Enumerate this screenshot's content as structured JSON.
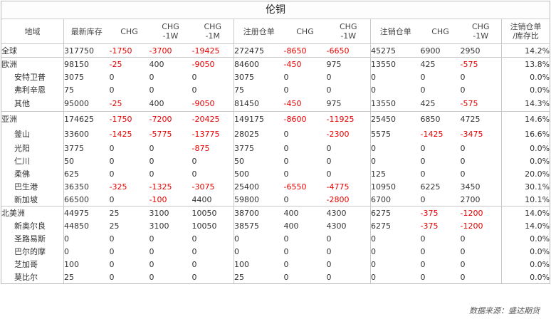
{
  "title": "伦铜",
  "headers": [
    [
      "地域",
      ""
    ],
    [
      "最新库存",
      ""
    ],
    [
      "CHG",
      ""
    ],
    [
      "CHG",
      "-1W"
    ],
    [
      "CHG",
      "-1M"
    ],
    [
      "注册仓单",
      ""
    ],
    [
      "CHG",
      ""
    ],
    [
      "CHG",
      "-1W"
    ],
    [
      "注销仓单",
      ""
    ],
    [
      "CHG",
      ""
    ],
    [
      "CHG",
      "-1W"
    ],
    [
      "注销仓单",
      "/库存比"
    ]
  ],
  "rows": [
    {
      "region": "全球",
      "sub": false,
      "values": [
        "317750",
        "-1750",
        "-3700",
        "-19425",
        "272475",
        "-8650",
        "-6650",
        "45275",
        "6900",
        "2950",
        "14.2%"
      ]
    },
    {
      "region": "欧洲",
      "sub": false,
      "values": [
        "98150",
        "-25",
        "400",
        "-9050",
        "84600",
        "-450",
        "975",
        "13550",
        "425",
        "-575",
        "13.8%"
      ]
    },
    {
      "region": "安特卫普",
      "sub": true,
      "values": [
        "3075",
        "0",
        "0",
        "0",
        "3075",
        "0",
        "0",
        "0",
        "0",
        "0",
        "0.0%"
      ]
    },
    {
      "region": "弗利辛恩",
      "sub": true,
      "values": [
        "75",
        "0",
        "0",
        "0",
        "75",
        "0",
        "0",
        "0",
        "0",
        "0",
        "0.0%"
      ]
    },
    {
      "region": "其他",
      "sub": true,
      "values": [
        "95000",
        "-25",
        "400",
        "-9050",
        "81450",
        "-450",
        "975",
        "13550",
        "425",
        "-575",
        "14.3%"
      ]
    },
    {
      "region": "亚洲",
      "sub": false,
      "values": [
        "174625",
        "-1750",
        "-7200",
        "-20425",
        "149175",
        "-8600",
        "-11925",
        "25450",
        "6850",
        "4725",
        "14.6%"
      ]
    },
    {
      "region": "釜山",
      "sub": true,
      "values": [
        "33600",
        "-1425",
        "-5775",
        "-13775",
        "28025",
        "0",
        "-2300",
        "5575",
        "-1425",
        "-3475",
        "16.6%"
      ]
    },
    {
      "region": "光阳",
      "sub": true,
      "values": [
        "3775",
        "0",
        "0",
        "-875",
        "3775",
        "0",
        "0",
        "0",
        "0",
        "0",
        "0.0%"
      ]
    },
    {
      "region": "仁川",
      "sub": true,
      "values": [
        "50",
        "0",
        "0",
        "0",
        "50",
        "0",
        "0",
        "0",
        "0",
        "0",
        "0.0%"
      ]
    },
    {
      "region": "柔佛",
      "sub": true,
      "values": [
        "625",
        "0",
        "0",
        "0",
        "500",
        "0",
        "0",
        "125",
        "0",
        "0",
        "20.0%"
      ]
    },
    {
      "region": "巴生港",
      "sub": true,
      "values": [
        "36350",
        "-325",
        "-1325",
        "-3075",
        "25400",
        "-6550",
        "-4775",
        "10950",
        "6225",
        "3450",
        "30.1%"
      ]
    },
    {
      "region": "新加坡",
      "sub": true,
      "values": [
        "66500",
        "0",
        "-100",
        "4400",
        "59800",
        "0",
        "-2800",
        "6700",
        "0",
        "2700",
        "10.1%"
      ]
    },
    {
      "region": "北美洲",
      "sub": false,
      "values": [
        "44975",
        "25",
        "3100",
        "10050",
        "38700",
        "400",
        "4300",
        "6275",
        "-375",
        "-1200",
        "14.0%"
      ]
    },
    {
      "region": "新奥尔良",
      "sub": true,
      "values": [
        "44850",
        "25",
        "3100",
        "10050",
        "38575",
        "400",
        "4300",
        "6275",
        "-375",
        "-1200",
        "14.0%"
      ]
    },
    {
      "region": "圣路易斯",
      "sub": true,
      "values": [
        "0",
        "0",
        "0",
        "0",
        "0",
        "0",
        "0",
        "0",
        "0",
        "0",
        "0.0%"
      ]
    },
    {
      "region": "巴尔的摩",
      "sub": true,
      "values": [
        "0",
        "0",
        "0",
        "0",
        "0",
        "0",
        "0",
        "0",
        "0",
        "0",
        "0.0%"
      ]
    },
    {
      "region": "芝加哥",
      "sub": true,
      "values": [
        "100",
        "0",
        "0",
        "0",
        "100",
        "0",
        "0",
        "0",
        "0",
        "0",
        "0.0%"
      ]
    },
    {
      "region": "莫比尔",
      "sub": true,
      "values": [
        "25",
        "0",
        "0",
        "0",
        "25",
        "0",
        "0",
        "0",
        "0",
        "0",
        "0.0%"
      ]
    }
  ],
  "source": "数据来源：盛达期货",
  "colors": {
    "negative": "#e60000",
    "text": "#333333",
    "border": "#c8c8c8"
  }
}
